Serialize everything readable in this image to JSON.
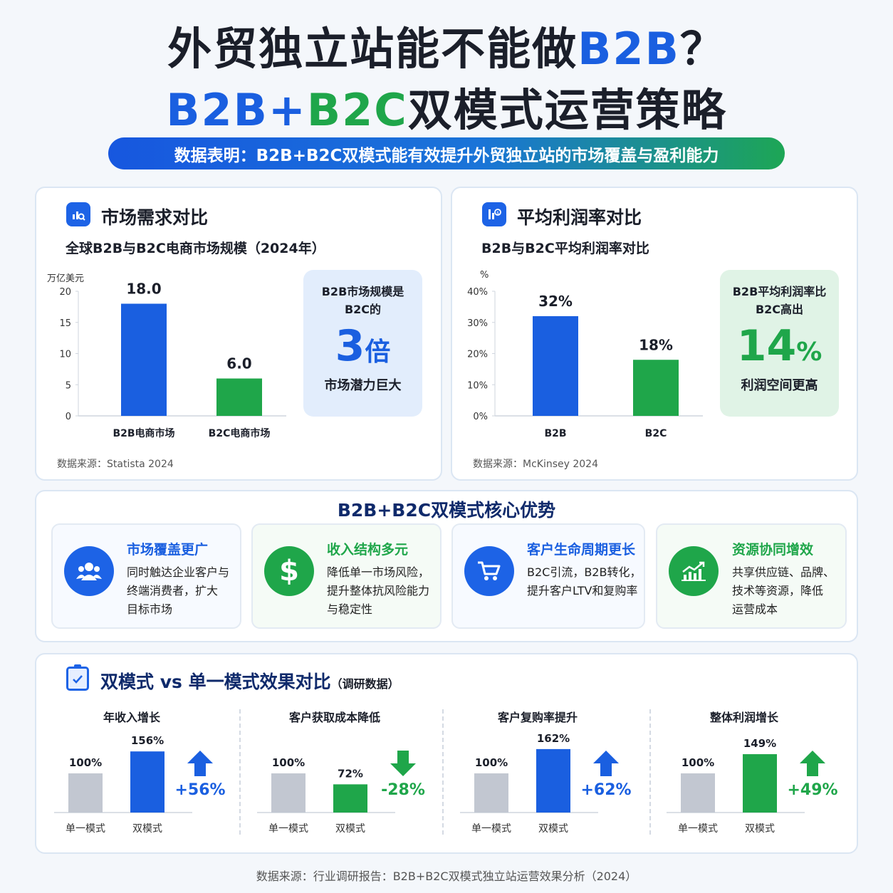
{
  "header": {
    "title_part1": "外贸独立站能不能做",
    "title_part2": "B2B",
    "title_part3": "？",
    "subtitle_part1": "B2B+",
    "subtitle_part2": "B2C",
    "subtitle_part3": "双模式运营策略",
    "banner": "数据表明：B2B+B2C双模式能有效提升外贸独立站的市场覆盖与盈利能力"
  },
  "colors": {
    "blue": "#1a5fe0",
    "green": "#1fa64a",
    "gray": "#c2c7d1"
  },
  "market": {
    "title": "市场需求对比",
    "icon": "chart-search-icon",
    "highlight_line1": "B2B市场规模是",
    "highlight_line2": "B2C的",
    "highlight_big": "3",
    "highlight_unit": "倍",
    "highlight_bottom": "市场潜力巨大",
    "source": "数据来源：Statista 2024"
  },
  "profit": {
    "title": "平均利润率对比",
    "icon": "chart-money-icon",
    "highlight_line1": "B2B平均利润率比",
    "highlight_line2": "B2C高出",
    "highlight_big": "14",
    "highlight_unit": "%",
    "highlight_bottom": "利润空间更高",
    "source": "数据来源：McKinsey 2024"
  },
  "advantages": {
    "title": "B2B+B2C双模式核心优势",
    "items": [
      {
        "title": "市场覆盖更广",
        "line1": "同时触达企业客户与",
        "line2": "终端消费者，扩大",
        "line3": "目标市场",
        "icon": "users-icon"
      },
      {
        "title": "收入结构多元",
        "line1": "降低单一市场风险，",
        "line2": "提升整体抗风险能力",
        "line3": "与稳定性",
        "icon": "dollar-icon"
      },
      {
        "title": "客户生命周期更长",
        "line1": "B2C引流，B2B转化，",
        "line2": "提升客户LTV和复购率",
        "line3": "",
        "icon": "cart-icon"
      },
      {
        "title": "资源协同增效",
        "line1": "共享供应链、品牌、",
        "line2": "技术等资源，降低",
        "line3": "运营成本",
        "icon": "growth-icon"
      }
    ]
  },
  "comparison": {
    "title": "双模式 vs 单一模式效果对比",
    "note": "（调研数据）",
    "icon": "clipboard-icon"
  },
  "footer": "数据来源：行业调研报告：B2B+B2C双模式独立站运营效果分析（2024）",
  "chart_data": [
    {
      "type": "bar",
      "title": "全球B2B与B2C电商市场规模（2024年）",
      "ylabel": "万亿美元",
      "categories": [
        "B2B电商市场",
        "B2C电商市场"
      ],
      "values": [
        18.0,
        6.0
      ],
      "value_labels": [
        "18.0",
        "6.0"
      ],
      "ylim": [
        0,
        20
      ],
      "yticks": [
        "0",
        "5",
        "10",
        "15",
        "20"
      ],
      "colors": [
        "#1a5fe0",
        "#1fa64a"
      ]
    },
    {
      "type": "bar",
      "title": "B2B与B2C平均利润率对比",
      "ylabel": "%",
      "categories": [
        "B2B",
        "B2C"
      ],
      "values": [
        32,
        18
      ],
      "value_labels": [
        "32%",
        "18%"
      ],
      "ylim": [
        0,
        40
      ],
      "yticks": [
        "0%",
        "10%",
        "20%",
        "30%",
        "40%"
      ],
      "colors": [
        "#1a5fe0",
        "#1fa64a"
      ]
    },
    {
      "type": "bar",
      "title": "年收入增长",
      "categories": [
        "单一模式",
        "双模式"
      ],
      "values": [
        100,
        156
      ],
      "value_labels": [
        "100%",
        "156%"
      ],
      "delta": "+56%",
      "direction": "up",
      "colors": [
        "#c2c7d1",
        "#1a5fe0"
      ]
    },
    {
      "type": "bar",
      "title": "客户获取成本降低",
      "categories": [
        "单一模式",
        "双模式"
      ],
      "values": [
        100,
        72
      ],
      "value_labels": [
        "100%",
        "72%"
      ],
      "delta": "-28%",
      "direction": "down",
      "colors": [
        "#c2c7d1",
        "#1fa64a"
      ]
    },
    {
      "type": "bar",
      "title": "客户复购率提升",
      "categories": [
        "单一模式",
        "双模式"
      ],
      "values": [
        100,
        162
      ],
      "value_labels": [
        "100%",
        "162%"
      ],
      "delta": "+62%",
      "direction": "up",
      "colors": [
        "#c2c7d1",
        "#1a5fe0"
      ]
    },
    {
      "type": "bar",
      "title": "整体利润增长",
      "categories": [
        "单一模式",
        "双模式"
      ],
      "values": [
        100,
        149
      ],
      "value_labels": [
        "100%",
        "149%"
      ],
      "delta": "+49%",
      "direction": "up",
      "colors": [
        "#c2c7d1",
        "#1fa64a"
      ]
    }
  ]
}
